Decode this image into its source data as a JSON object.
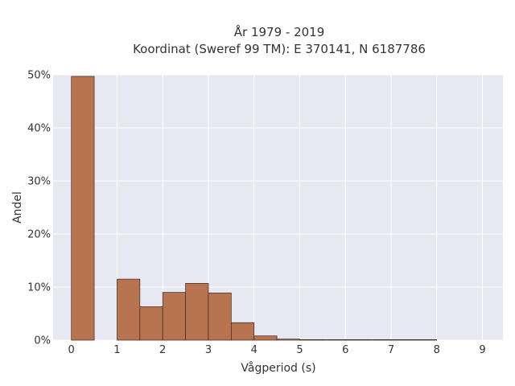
{
  "chart_data": {
    "type": "bar",
    "title_lines": [
      "År 1979 - 2019",
      "Koordinat (Sweref 99 TM): E 370141, N 6187786"
    ],
    "xlabel": "Vågperiod (s)",
    "ylabel": "Andel",
    "x_ticks": [
      "0",
      "1",
      "2",
      "3",
      "4",
      "5",
      "6",
      "7",
      "8",
      "9"
    ],
    "y_ticks": [
      "0%",
      "10%",
      "20%",
      "30%",
      "40%",
      "50%"
    ],
    "xlim": [
      -0.4,
      9.45
    ],
    "ylim": [
      0,
      0.5
    ],
    "bin_width": 0.5,
    "bars": [
      {
        "x0": 0.0,
        "value": 0.497
      },
      {
        "x0": 1.0,
        "value": 0.115
      },
      {
        "x0": 1.5,
        "value": 0.063
      },
      {
        "x0": 2.0,
        "value": 0.09
      },
      {
        "x0": 2.5,
        "value": 0.107
      },
      {
        "x0": 3.0,
        "value": 0.089
      },
      {
        "x0": 3.5,
        "value": 0.033
      },
      {
        "x0": 4.0,
        "value": 0.008
      },
      {
        "x0": 4.5,
        "value": 0.002
      },
      {
        "x0": 5.0,
        "value": 0.001
      },
      {
        "x0": 5.5,
        "value": 0.001
      },
      {
        "x0": 6.0,
        "value": 0.001
      },
      {
        "x0": 6.5,
        "value": 0.001
      },
      {
        "x0": 7.0,
        "value": 0.001
      },
      {
        "x0": 7.5,
        "value": 0.001
      }
    ],
    "bar_color": "#b87350",
    "plot_background": "#e8e8f2",
    "grid": true
  }
}
